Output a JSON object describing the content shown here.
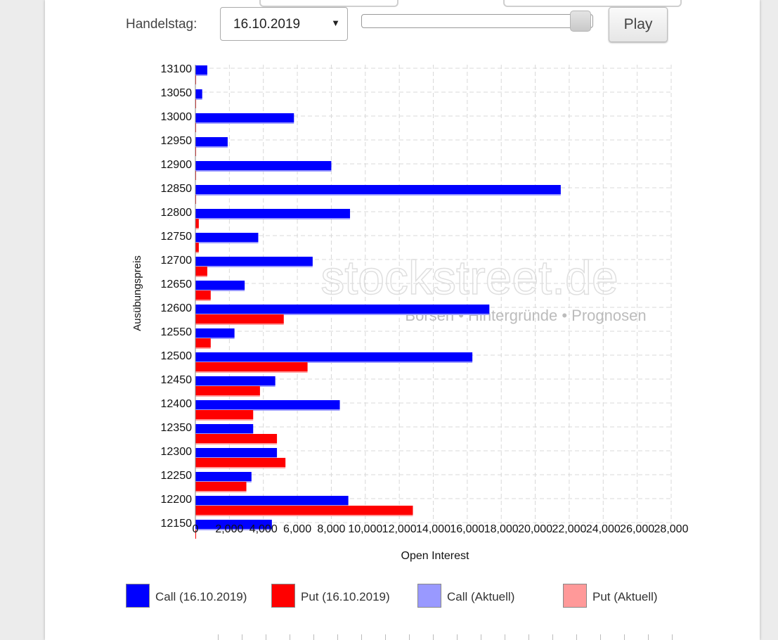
{
  "controls": {
    "day_label": "Handelstag:",
    "selected_date": "16.10.2019",
    "play_label": "Play",
    "slider_position": 0.99
  },
  "watermark": {
    "brand": "stockstreet.de",
    "tagline": "Börsen • Hintergründe • Prognosen"
  },
  "chart_data": {
    "type": "bar",
    "orientation": "horizontal",
    "xlabel": "Open Interest",
    "ylabel": "Ausübungspreis",
    "xlim": [
      0,
      28000
    ],
    "xticks": [
      "0",
      "2,000",
      "4,000",
      "6,000",
      "8,000",
      "10,000",
      "12,000",
      "14,000",
      "16,000",
      "18,000",
      "20,000",
      "22,000",
      "24,000",
      "26,000",
      "28,000"
    ],
    "grid": true,
    "legend_position": "bottom",
    "categories": [
      "13100",
      "13050",
      "13000",
      "12950",
      "12900",
      "12850",
      "12800",
      "12750",
      "12700",
      "12650",
      "12600",
      "12550",
      "12500",
      "12450",
      "12400",
      "12350",
      "12300",
      "12250",
      "12200",
      "12150"
    ],
    "series": [
      {
        "name": "Call (16.10.2019)",
        "color": "#0000ff",
        "values": [
          700,
          400,
          5800,
          1900,
          8000,
          21500,
          9100,
          3700,
          6900,
          2900,
          17300,
          2300,
          16300,
          4700,
          8500,
          3400,
          4800,
          3300,
          9000,
          4500
        ]
      },
      {
        "name": "Put (16.10.2019)",
        "color": "#ff0000",
        "values": [
          0,
          0,
          0,
          0,
          0,
          0,
          200,
          200,
          700,
          900,
          5200,
          900,
          6600,
          3800,
          3400,
          4800,
          5300,
          3000,
          12800,
          0
        ]
      },
      {
        "name": "Call (Aktuell)",
        "color": "#9999ff",
        "values": [
          700,
          400,
          5800,
          1900,
          8000,
          21500,
          9100,
          3700,
          6900,
          2900,
          17300,
          2300,
          16300,
          4700,
          8500,
          3400,
          4800,
          3300,
          9000,
          4500
        ]
      },
      {
        "name": "Put (Aktuell)",
        "color": "#ff9999",
        "values": [
          0,
          0,
          0,
          0,
          0,
          0,
          200,
          200,
          700,
          900,
          5200,
          900,
          6600,
          3800,
          3400,
          4800,
          5300,
          3000,
          12800,
          0
        ]
      }
    ]
  }
}
